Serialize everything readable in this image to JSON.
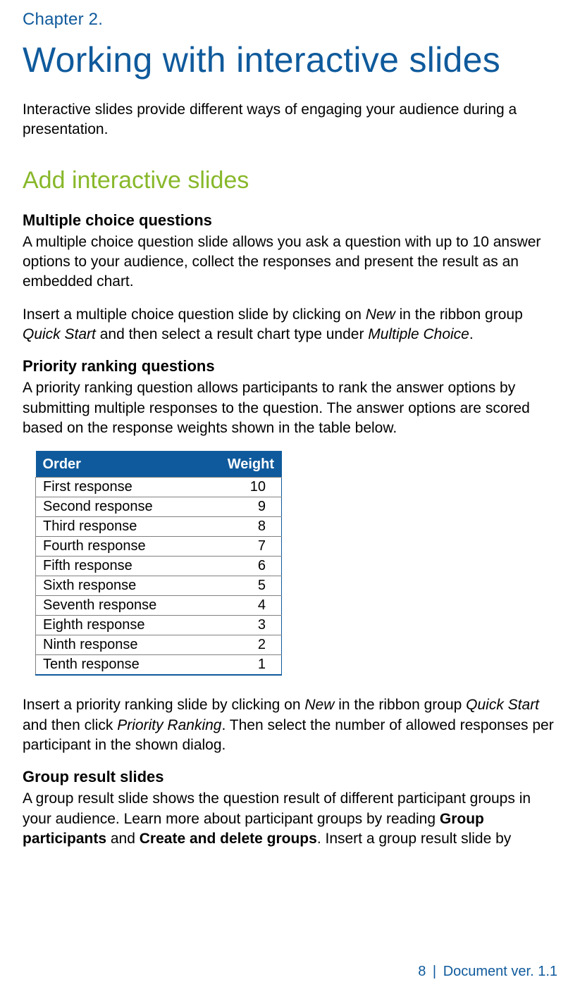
{
  "chapter": {
    "label": "Chapter 2.",
    "title": "Working with interactive slides",
    "intro": "Interactive slides provide different ways of engaging your audience during a presentation."
  },
  "section_add": {
    "heading": "Add interactive slides"
  },
  "mcq": {
    "heading": "Multiple choice questions",
    "para1": "A multiple choice question slide allows you ask a question with up to 10 answer options to your audience, collect the responses and present the result as an embedded chart.",
    "para2_pre": "Insert a multiple choice question slide by clicking on ",
    "para2_em1": "New",
    "para2_mid1": " in the ribbon group ",
    "para2_em2": "Quick Start",
    "para2_mid2": " and then select a result chart type under ",
    "para2_em3": "Multiple Choice",
    "para2_post": "."
  },
  "priority": {
    "heading": "Priority ranking questions",
    "para1": "A priority ranking question allows participants to rank the answer options by submitting multiple responses to the question. The answer options are scored based on the response weights shown in the table below.",
    "table": {
      "col_order": "Order",
      "col_weight": "Weight",
      "rows": [
        {
          "order": "First response",
          "weight": "10"
        },
        {
          "order": "Second response",
          "weight": "9"
        },
        {
          "order": "Third response",
          "weight": "8"
        },
        {
          "order": "Fourth response",
          "weight": "7"
        },
        {
          "order": "Fifth response",
          "weight": "6"
        },
        {
          "order": "Sixth response",
          "weight": "5"
        },
        {
          "order": "Seventh response",
          "weight": "4"
        },
        {
          "order": "Eighth response",
          "weight": "3"
        },
        {
          "order": "Ninth response",
          "weight": "2"
        },
        {
          "order": "Tenth response",
          "weight": "1"
        }
      ]
    },
    "para2_pre": "Insert a priority ranking slide by clicking on ",
    "para2_em1": "New",
    "para2_mid1": " in the ribbon group ",
    "para2_em2": "Quick Start",
    "para2_mid2": " and then click ",
    "para2_em3": "Priority Ranking",
    "para2_post": ". Then select the number of allowed responses per participant in the shown dialog."
  },
  "group": {
    "heading": "Group result slides",
    "para1_pre": "A group result slide shows the question result of different participant groups in your audience. Learn more about participant groups by reading ",
    "para1_b1": "Group participants",
    "para1_mid": " and ",
    "para1_b2": "Create and delete groups",
    "para1_post": ". Insert a group result slide by"
  },
  "footer": {
    "page": "8",
    "sep": "|",
    "doc": "Document ver. 1.1"
  },
  "colors": {
    "brand_blue": "#0f5a9c",
    "accent_green": "#88b82a",
    "text": "#000000",
    "table_border": "#808080",
    "background": "#ffffff"
  },
  "typography": {
    "chapter_label_pt": 24,
    "chapter_title_pt": 50,
    "section_h2_pt": 34,
    "subsection_h3_pt": 22,
    "body_pt": 21,
    "table_pt": 20,
    "footer_pt": 20
  }
}
